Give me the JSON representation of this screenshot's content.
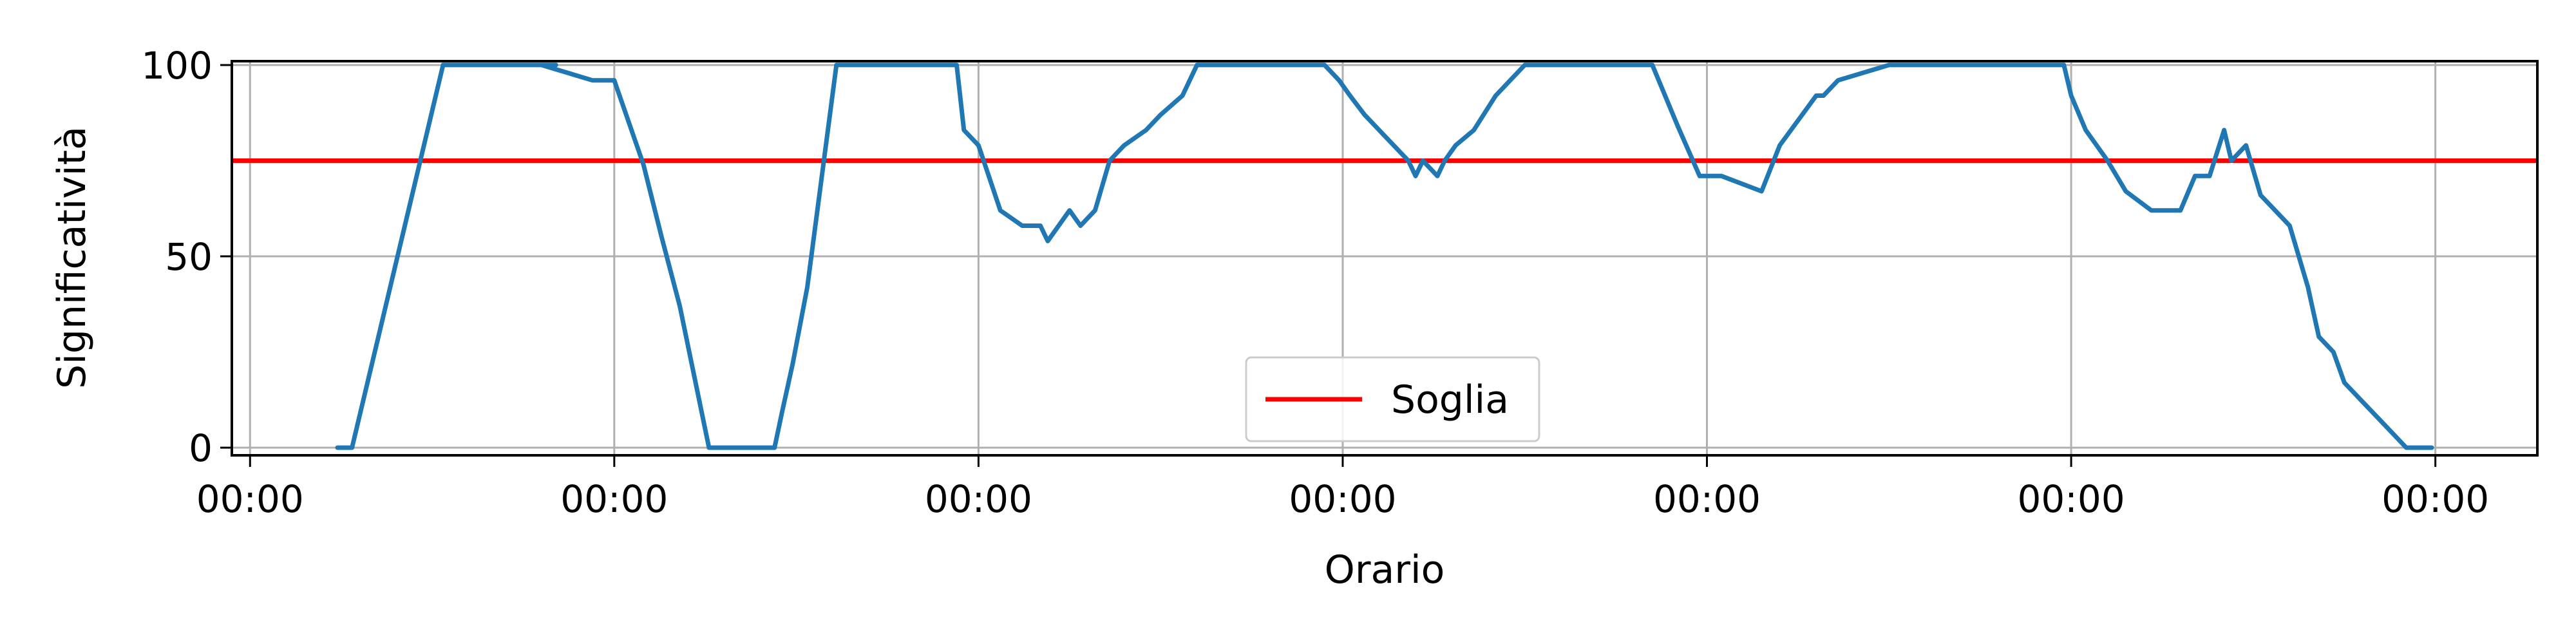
{
  "chart_data": {
    "type": "line",
    "title": "",
    "xlabel": "Orario",
    "ylabel": "Significatività",
    "x_tick_labels": [
      "00:00",
      "00:00",
      "00:00",
      "00:00",
      "00:00",
      "00:00",
      "00:00"
    ],
    "x_ticks": [
      0,
      1,
      2,
      3,
      4,
      5,
      6
    ],
    "xlim": [
      -0.05,
      6.28
    ],
    "y_ticks": [
      0,
      50,
      100
    ],
    "ylim": [
      -2,
      101
    ],
    "grid": true,
    "legend": {
      "position": "bottom-center",
      "entries": [
        "Soglia"
      ]
    },
    "threshold": {
      "name": "Soglia",
      "value": 75,
      "color": "#ff0000"
    },
    "series": [
      {
        "color": "#1f77b4",
        "x": [
          0.24,
          0.28,
          0.53,
          0.84,
          0.8,
          0.94,
          1.0,
          1.08,
          1.13,
          1.18,
          1.26,
          1.29,
          1.44,
          1.46,
          1.49,
          1.53,
          1.61,
          1.74,
          1.81,
          1.94,
          1.96,
          2.0,
          2.06,
          2.12,
          2.17,
          2.19,
          2.25,
          2.28,
          2.32,
          2.36,
          2.4,
          2.46,
          2.5,
          2.56,
          2.6,
          2.65,
          2.72,
          2.95,
          2.99,
          3.02,
          3.06,
          3.1,
          3.14,
          3.18,
          3.2,
          3.22,
          3.26,
          3.28,
          3.31,
          3.36,
          3.42,
          3.5,
          3.53,
          3.85,
          3.92,
          3.98,
          4.04,
          4.15,
          4.2,
          4.3,
          4.32,
          4.36,
          4.5,
          4.52,
          4.56,
          4.62,
          4.78,
          4.98,
          5.0,
          5.04,
          5.1,
          5.15,
          5.22,
          5.3,
          5.34,
          5.38,
          5.42,
          5.44,
          5.48,
          5.52,
          5.56,
          5.6,
          5.65,
          5.68,
          5.72,
          5.75,
          5.8,
          5.84,
          5.88,
          5.92,
          5.99
        ],
        "y": [
          0,
          0,
          100,
          100,
          100,
          96,
          96,
          74,
          55,
          37,
          0,
          0,
          0,
          9,
          22,
          42,
          100,
          100,
          100,
          100,
          83,
          79,
          62,
          58,
          58,
          54,
          62,
          58,
          62,
          75,
          79,
          83,
          87,
          92,
          100,
          100,
          100,
          100,
          96,
          92,
          87,
          83,
          79,
          75,
          71,
          75,
          71,
          75,
          79,
          83,
          92,
          100,
          100,
          100,
          84,
          71,
          71,
          67,
          79,
          92,
          92,
          96,
          100,
          100,
          100,
          100,
          100,
          100,
          92,
          83,
          75,
          67,
          62,
          62,
          71,
          71,
          83,
          75,
          79,
          66,
          62,
          58,
          42,
          29,
          25,
          17,
          12,
          8,
          4,
          0,
          0
        ]
      }
    ]
  }
}
